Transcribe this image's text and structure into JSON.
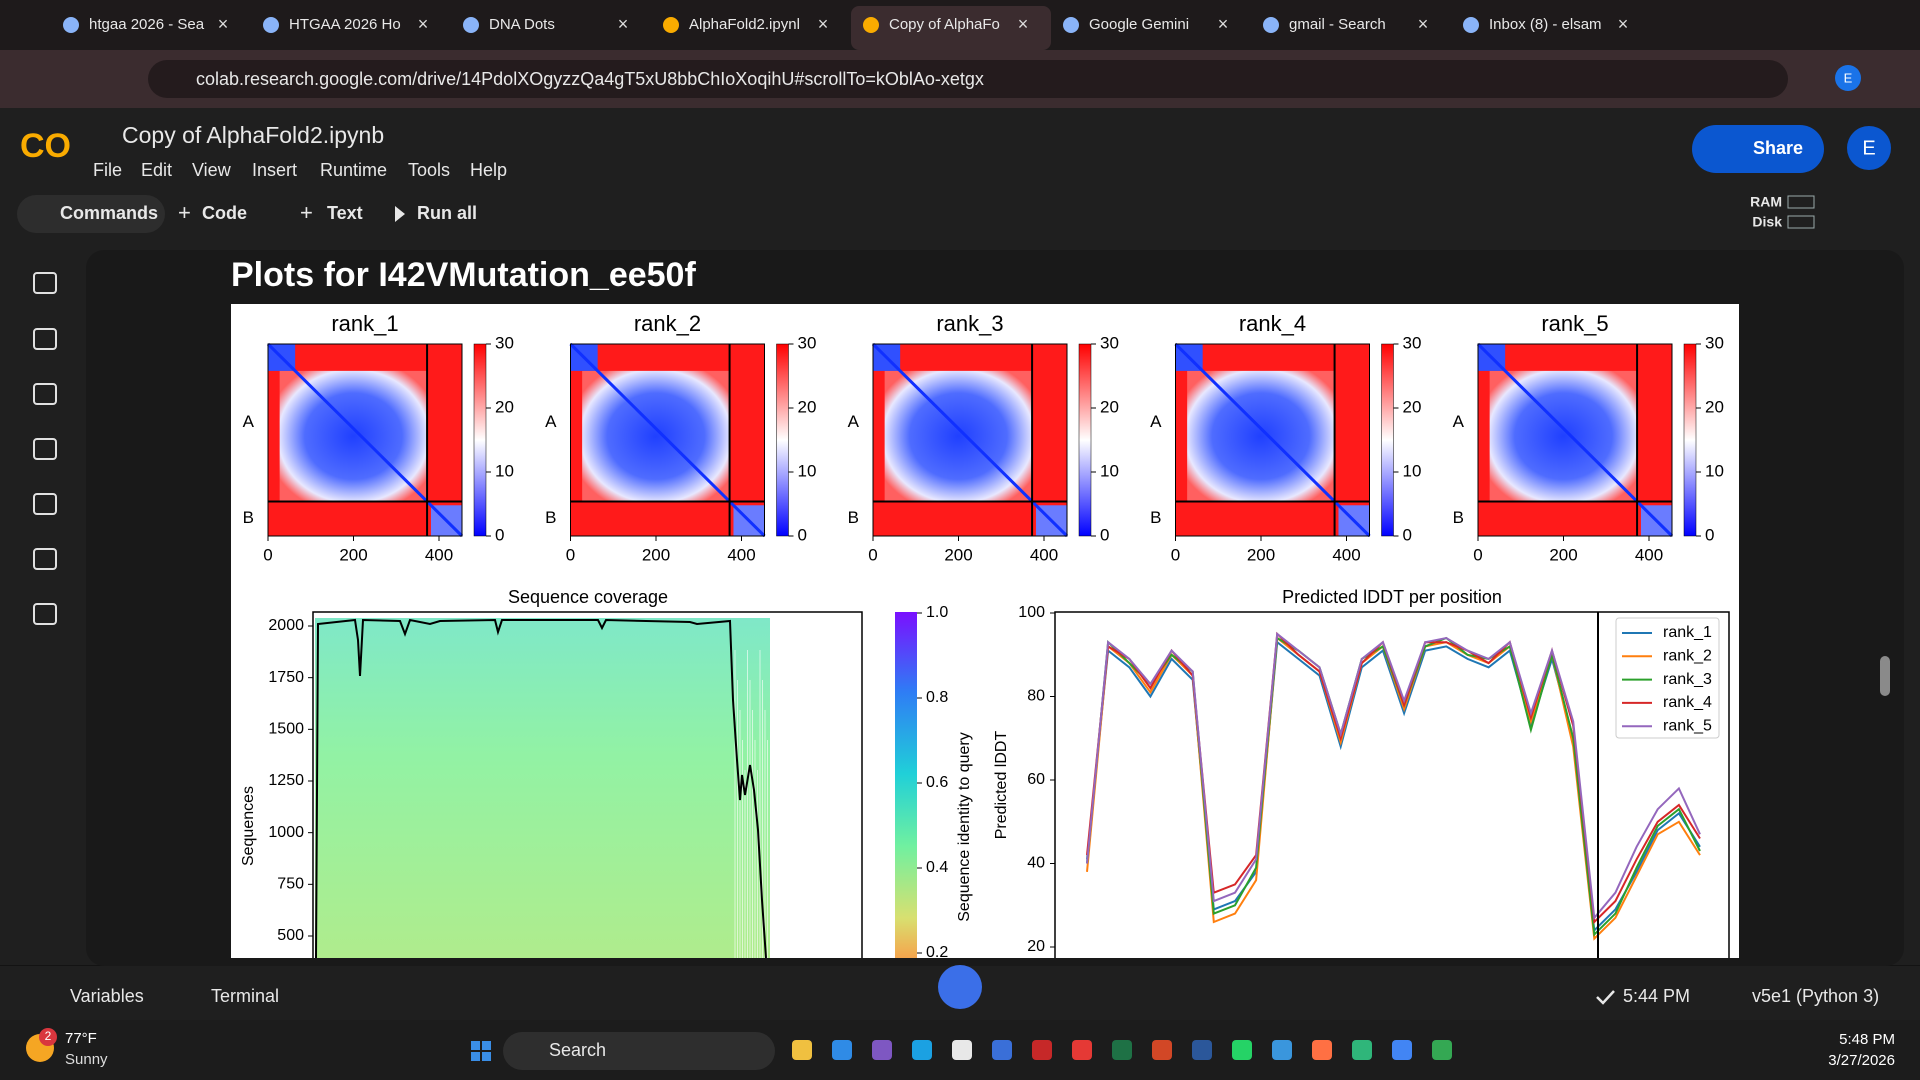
{
  "tabs": [
    "htgaa 2026 - Sea",
    "HTGAA 2026 Ho",
    "DNA Dots",
    "AlphaFold2.ipynl",
    "Copy of AlphaFo",
    "Google Gemini",
    "gmail - Search",
    "Inbox (8) - elsam"
  ],
  "address_bar": {
    "url": "colab.research.google.com/drive/14PdolXOgyzzQa4gT5xU8bbChIoXoqihU#scrollTo=kOblAo-xetgx",
    "profile": "E"
  },
  "notebook": {
    "logo": "CO",
    "title": "Copy of AlphaFold2.ipynb",
    "menu": [
      "File",
      "Edit",
      "View",
      "Insert",
      "Runtime",
      "Tools",
      "Help"
    ],
    "share": "Share",
    "avatar": "E"
  },
  "toolbar": {
    "commands": "Commands",
    "add_code": "Code",
    "add_text": "Text",
    "run_all": "Run all",
    "ram": "RAM",
    "disk": "Disk"
  },
  "cell": {
    "heading": "Plots for I42VMutation_ee50f"
  },
  "pae_plots": {
    "titles": [
      "rank_1",
      "rank_2",
      "rank_3",
      "rank_4",
      "rank_5"
    ],
    "chain_labels": [
      "A",
      "B"
    ],
    "xticks": [
      0,
      200,
      400
    ],
    "colorbar_ticks": [
      30,
      20,
      10,
      0
    ]
  },
  "coverage_plot": {
    "title": "Sequence coverage",
    "ylabel": "Sequences",
    "yticks": [
      2000,
      1750,
      1500,
      1250,
      1000,
      750,
      500
    ],
    "colorbar_label": "Sequence identity to query",
    "colorbar_ticks": [
      "1.0",
      "0.8",
      "0.6",
      "0.4",
      "0.2"
    ]
  },
  "lddt_plot": {
    "title": "Predicted lDDT per position",
    "ylabel": "Predicted lDDT",
    "yticks": [
      100,
      80,
      60,
      40,
      20
    ],
    "series": [
      {
        "name": "rank_1",
        "color": "#1f77b4",
        "values": [
          41,
          91,
          87,
          80,
          89,
          84,
          29,
          31,
          38,
          93,
          89,
          85,
          68,
          87,
          91,
          76,
          91,
          92,
          89,
          87,
          91,
          73,
          89,
          70,
          24,
          29,
          38,
          48,
          52,
          44
        ]
      },
      {
        "name": "rank_2",
        "color": "#ff7f0e",
        "values": [
          38,
          92,
          88,
          81,
          90,
          85,
          26,
          28,
          36,
          94,
          90,
          86,
          69,
          88,
          92,
          77,
          92,
          93,
          90,
          88,
          92,
          74,
          90,
          68,
          22,
          27,
          37,
          47,
          50,
          42
        ]
      },
      {
        "name": "rank_3",
        "color": "#2ca02c",
        "values": [
          40,
          93,
          88,
          83,
          90,
          86,
          28,
          30,
          39,
          94,
          91,
          87,
          71,
          89,
          92,
          78,
          92,
          94,
          90,
          89,
          92,
          72,
          90,
          70,
          23,
          28,
          39,
          49,
          53,
          43
        ]
      },
      {
        "name": "rank_4",
        "color": "#d62728",
        "values": [
          42,
          92,
          89,
          82,
          91,
          85,
          33,
          35,
          42,
          95,
          90,
          86,
          70,
          88,
          93,
          78,
          93,
          93,
          91,
          88,
          93,
          75,
          91,
          73,
          26,
          31,
          41,
          50,
          54,
          46
        ]
      },
      {
        "name": "rank_5",
        "color": "#9467bd",
        "values": [
          40,
          93,
          89,
          83,
          91,
          86,
          31,
          33,
          41,
          95,
          91,
          87,
          71,
          89,
          93,
          79,
          93,
          94,
          91,
          89,
          93,
          76,
          91,
          74,
          27,
          33,
          44,
          53,
          58,
          47
        ]
      }
    ]
  },
  "status_bar": {
    "variables": "Variables",
    "terminal": "Terminal",
    "last_run": "5:44 PM",
    "runtime": "v5e1 (Python 3)"
  },
  "taskbar": {
    "badge": "2",
    "temperature": "77°F",
    "weather": "Sunny",
    "search": "Search",
    "time": "5:48 PM",
    "date": "3/27/2026"
  }
}
